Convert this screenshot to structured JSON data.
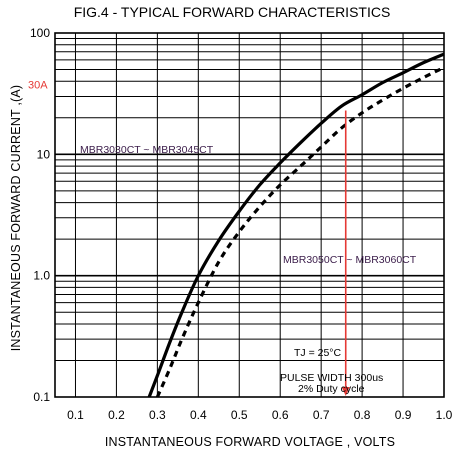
{
  "chart_data": {
    "type": "line",
    "title": "FIG.4 - TYPICAL FORWARD CHARACTERISTICS",
    "xlabel": "INSTANTANEOUS FORWARD VOLTAGE , VOLTS",
    "ylabel": "INSTANTANEOUS  FORWARD CURRENT ,(A)",
    "xlim": [
      0.05,
      1.0
    ],
    "ylim": [
      0.1,
      100
    ],
    "yscale": "log",
    "grid": true,
    "x_ticks": [
      "0.1",
      "0.2",
      "0.3",
      "0.4",
      "0.5",
      "0.6",
      "0.7",
      "0.8",
      "0.9",
      "1.0"
    ],
    "y_ticks": [
      "0.1",
      "1.0",
      "10",
      "100"
    ],
    "series": [
      {
        "name": "MBR3030CT ~ MBR3045CT",
        "style": "solid",
        "color": "#000000",
        "x": [
          0.28,
          0.3,
          0.33,
          0.36,
          0.4,
          0.45,
          0.5,
          0.55,
          0.6,
          0.65,
          0.7,
          0.75,
          0.8,
          0.85,
          0.9,
          0.95,
          1.0
        ],
        "y": [
          0.1,
          0.15,
          0.28,
          0.5,
          1.0,
          1.95,
          3.4,
          5.6,
          8.5,
          12.5,
          18,
          25,
          31,
          39,
          47,
          57,
          67
        ]
      },
      {
        "name": "MBR3050CT ~ MBR3060CT",
        "style": "dashed",
        "color": "#000000",
        "x": [
          0.3,
          0.33,
          0.36,
          0.4,
          0.45,
          0.5,
          0.55,
          0.6,
          0.65,
          0.7,
          0.75,
          0.8,
          0.85,
          0.9,
          0.95,
          1.0
        ],
        "y": [
          0.1,
          0.17,
          0.3,
          0.6,
          1.3,
          2.3,
          3.7,
          5.6,
          8.0,
          11.5,
          16.5,
          22,
          28,
          35,
          43,
          52
        ]
      }
    ],
    "marker": {
      "label": "30A",
      "y": 30,
      "x": 0.76,
      "color": "#e53935"
    },
    "annotations": {
      "series_a_label": "MBR3030CT ~ MBR3045CT",
      "series_b_label": "MBR3050CT ~ MBR3060CT",
      "tj": "TJ = 25°C",
      "pulse": "PULSE WIDTH 300us",
      "duty": "2% Duty cycle"
    }
  }
}
